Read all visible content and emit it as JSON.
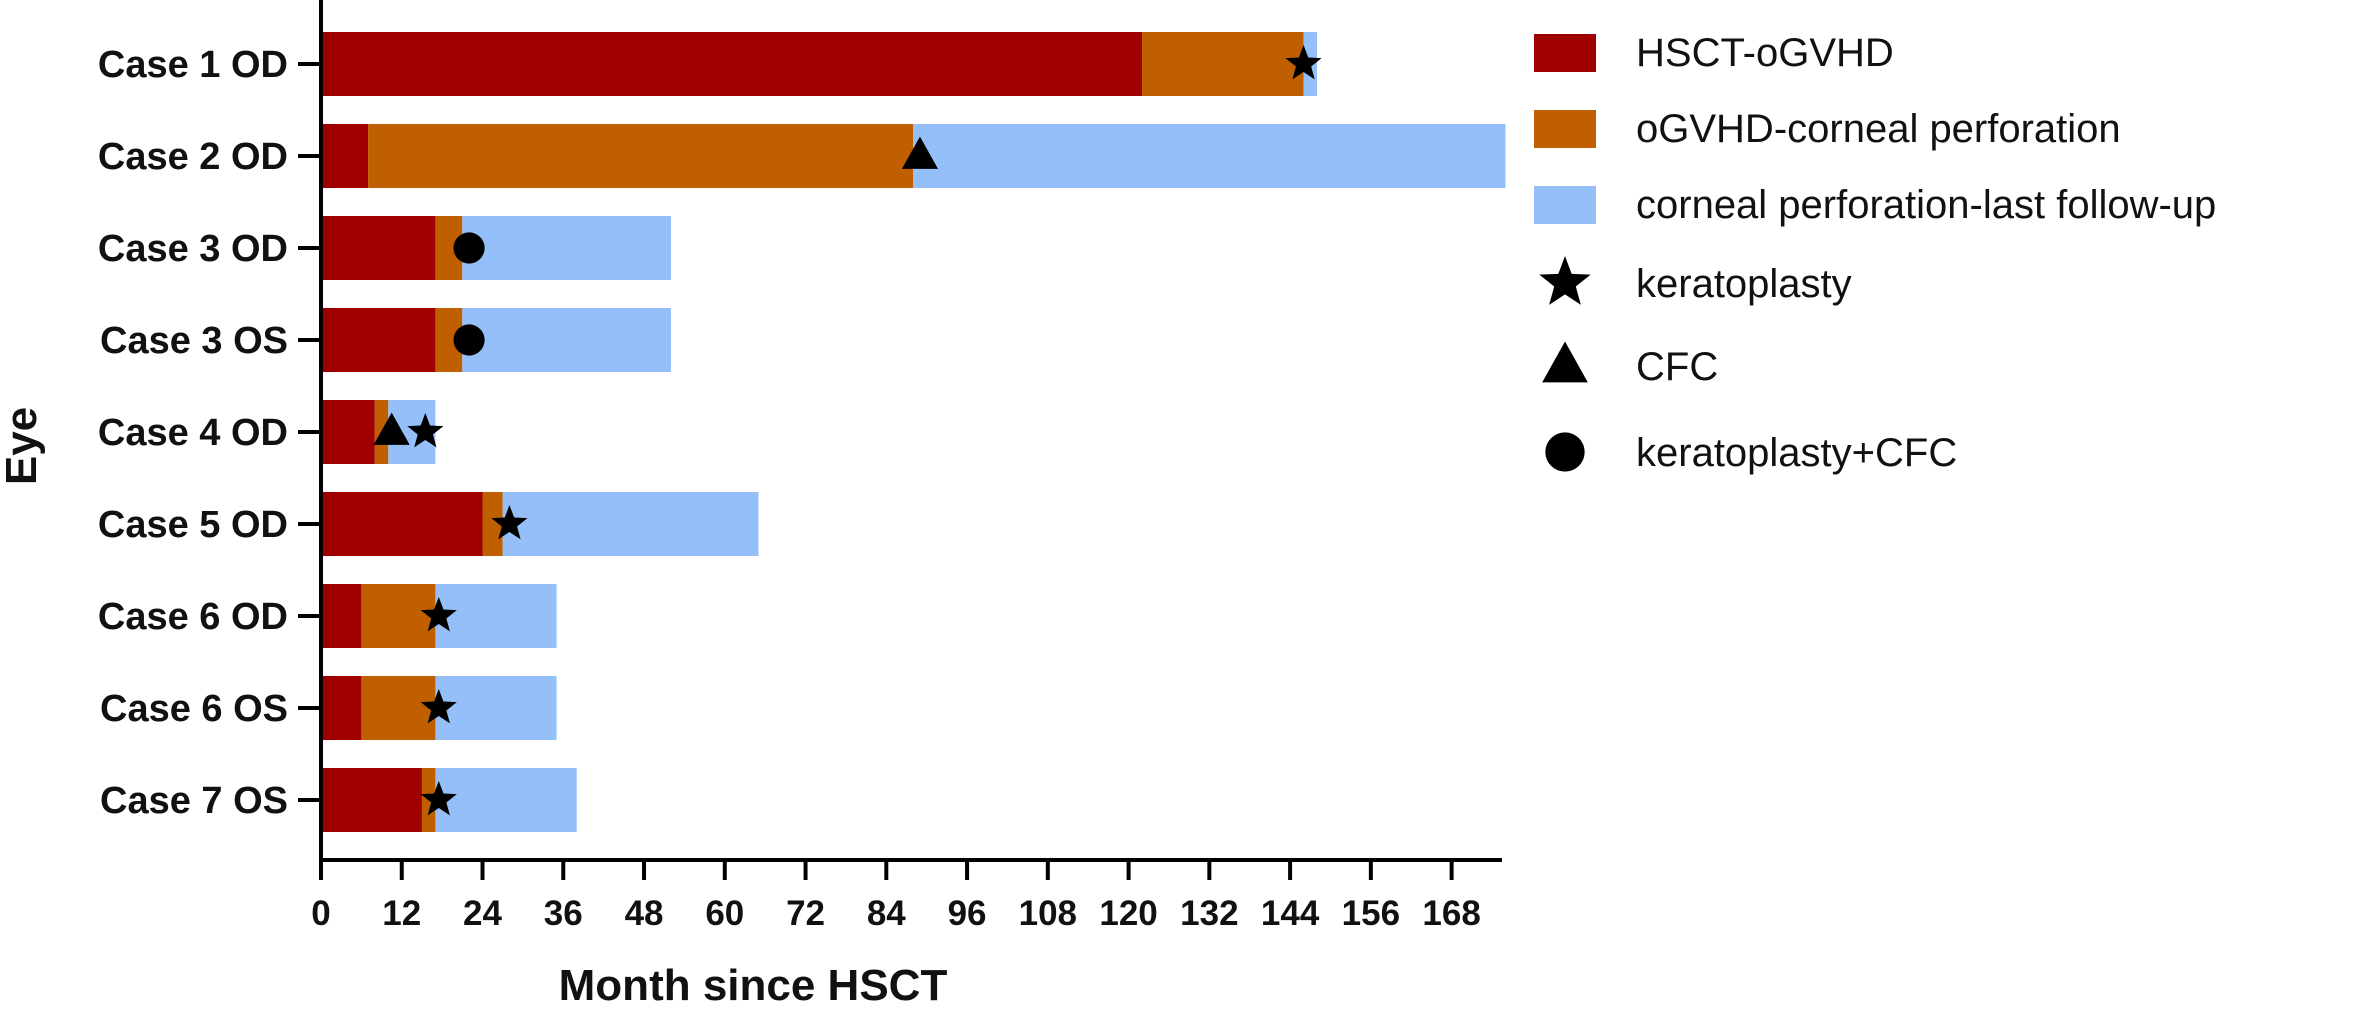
{
  "chart_data": {
    "type": "bar",
    "orientation": "horizontal",
    "stacked": true,
    "xlabel": "Month since HSCT",
    "ylabel": "Eye",
    "xlim": [
      0,
      180
    ],
    "xticks": [
      0,
      12,
      24,
      36,
      48,
      60,
      72,
      84,
      96,
      108,
      120,
      132,
      144,
      156,
      168
    ],
    "grid": false,
    "legend_position": "right",
    "categories": [
      "Case 1 OD",
      "Case 2 OD",
      "Case 3 OD",
      "Case 3 OS",
      "Case 4 OD",
      "Case 5 OD",
      "Case 6 OD",
      "Case 6 OS",
      "Case 7 OS"
    ],
    "series": [
      {
        "name": "HSCT-oGVHD",
        "color": "#a00000",
        "values": [
          122,
          7,
          17,
          17,
          8,
          24,
          6,
          6,
          15
        ]
      },
      {
        "name": "oGVHD-corneal perforation",
        "color": "#c05f00",
        "values": [
          24,
          81,
          4,
          4,
          2,
          3,
          11,
          11,
          2
        ]
      },
      {
        "name": "corneal perforation-last follow-up",
        "color": "#94bff8",
        "values": [
          2,
          88,
          31,
          31,
          7,
          38,
          18,
          18,
          21
        ]
      }
    ],
    "markers": [
      {
        "category": "Case 1 OD",
        "x": 146,
        "symbol": "star"
      },
      {
        "category": "Case 2 OD",
        "x": 89,
        "symbol": "triangle"
      },
      {
        "category": "Case 3 OD",
        "x": 22,
        "symbol": "circle"
      },
      {
        "category": "Case 3 OS",
        "x": 22,
        "symbol": "circle"
      },
      {
        "category": "Case 4 OD",
        "x": 10.5,
        "symbol": "triangle"
      },
      {
        "category": "Case 4 OD",
        "x": 15.5,
        "symbol": "star"
      },
      {
        "category": "Case 5 OD",
        "x": 28,
        "symbol": "star"
      },
      {
        "category": "Case 6 OD",
        "x": 17.5,
        "symbol": "star"
      },
      {
        "category": "Case 6 OS",
        "x": 17.5,
        "symbol": "star"
      },
      {
        "category": "Case 7 OS",
        "x": 17.5,
        "symbol": "star"
      }
    ],
    "marker_legend": [
      {
        "symbol": "star",
        "label": "keratoplasty"
      },
      {
        "symbol": "triangle",
        "label": "CFC"
      },
      {
        "symbol": "circle",
        "label": "keratoplasty+CFC"
      }
    ]
  }
}
